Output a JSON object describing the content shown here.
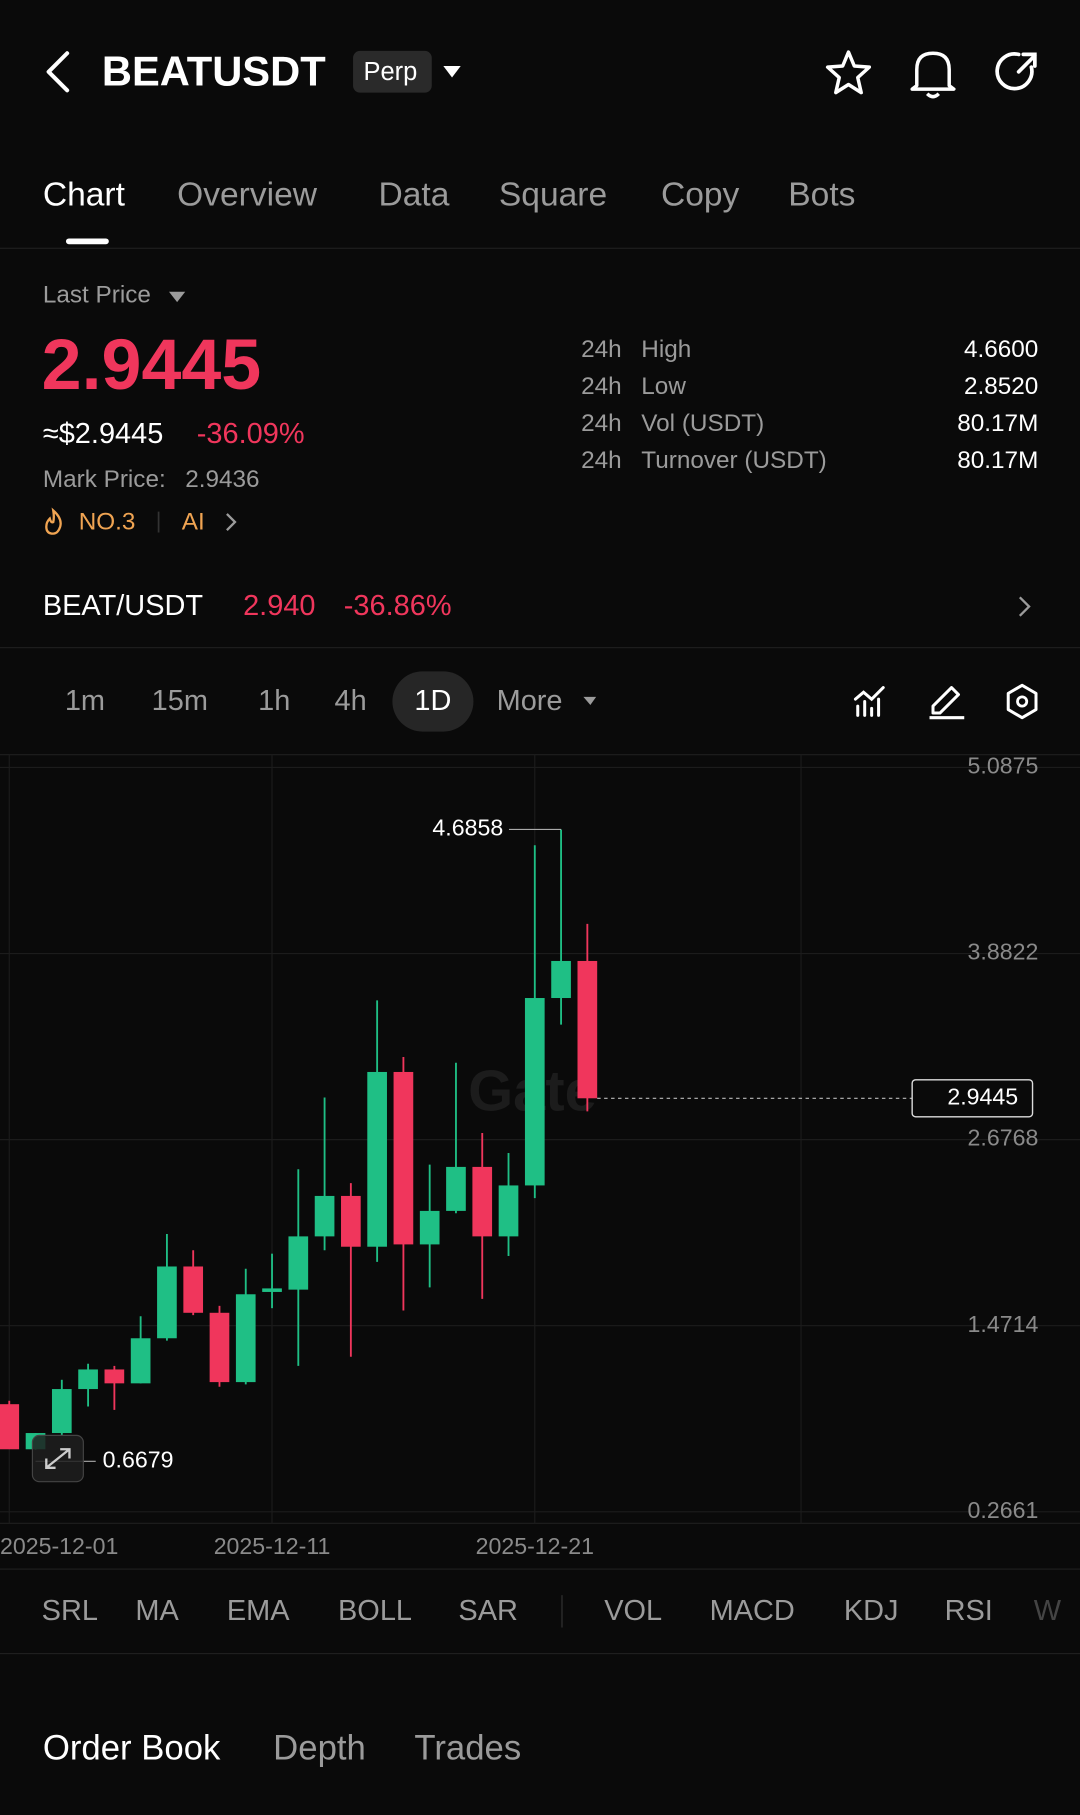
{
  "header": {
    "symbol": "BEATUSDT",
    "contract": "Perp"
  },
  "tabs": [
    "Chart",
    "Overview",
    "Data",
    "Square",
    "Copy",
    "Bots"
  ],
  "price": {
    "label": "Last Price",
    "last": "2.9445",
    "usd": "≈$2.9445",
    "change": "-36.09%",
    "mark_label": "Mark Price:",
    "mark": "2.9436",
    "rank": "NO.3",
    "ai": "AI"
  },
  "stats": [
    {
      "period": "24h",
      "label": "High",
      "value": "4.6600"
    },
    {
      "period": "24h",
      "label": "Low",
      "value": "2.8520"
    },
    {
      "period": "24h",
      "label": "Vol (USDT)",
      "value": "80.17M"
    },
    {
      "period": "24h",
      "label": "Turnover (USDT)",
      "value": "80.17M"
    }
  ],
  "spot": {
    "pair": "BEAT/USDT",
    "price": "2.940",
    "change": "-36.86%"
  },
  "timeframes": [
    "1m",
    "15m",
    "1h",
    "4h",
    "1D",
    "More"
  ],
  "chart_data": {
    "type": "candlestick",
    "watermark": "Gate",
    "categories": [
      "2025-12-01",
      null,
      null,
      null,
      null,
      null,
      null,
      null,
      null,
      null,
      "2025-12-11",
      null,
      null,
      null,
      null,
      null,
      null,
      null,
      null,
      null,
      "2025-12-21",
      null,
      null
    ],
    "open": [
      0.963,
      0.671,
      0.776,
      1.061,
      1.188,
      1.098,
      1.39,
      1.855,
      1.555,
      1.106,
      1.69,
      1.705,
      2.05,
      2.312,
      1.983,
      3.115,
      1.998,
      2.215,
      2.5,
      2.05,
      2.38,
      3.594,
      3.834
    ],
    "high": [
      0.985,
      0.776,
      1.121,
      1.225,
      1.211,
      1.533,
      2.065,
      1.96,
      1.6,
      1.84,
      1.938,
      2.485,
      2.95,
      2.395,
      3.579,
      3.212,
      2.515,
      3.175,
      2.72,
      2.59,
      4.584,
      4.6858,
      4.074
    ],
    "low": [
      0.69,
      0.6679,
      0.761,
      0.948,
      0.926,
      1.098,
      1.375,
      1.54,
      1.076,
      1.091,
      1.585,
      1.211,
      1.96,
      1.27,
      1.885,
      1.57,
      1.72,
      2.2,
      1.645,
      1.923,
      2.298,
      3.422,
      2.86
    ],
    "close": [
      0.671,
      0.776,
      1.061,
      1.188,
      1.098,
      1.39,
      1.855,
      1.555,
      1.106,
      1.675,
      1.713,
      2.05,
      2.312,
      1.983,
      3.115,
      1.998,
      2.215,
      2.5,
      2.05,
      2.38,
      3.594,
      3.834,
      2.9445
    ],
    "up_color": "#1fbf85",
    "down_color": "#f0365c",
    "ylim": [
      0.2661,
      5.0875
    ],
    "yticks": [
      5.0875,
      3.8822,
      2.6768,
      1.4714,
      0.2661
    ],
    "grid": true
  },
  "indicators": [
    "SRL",
    "MA",
    "EMA",
    "BOLL",
    "SAR",
    "VOL",
    "MACD",
    "KDJ",
    "RSI",
    "W"
  ],
  "bottom_tabs": [
    "Order Book",
    "Depth",
    "Trades"
  ]
}
